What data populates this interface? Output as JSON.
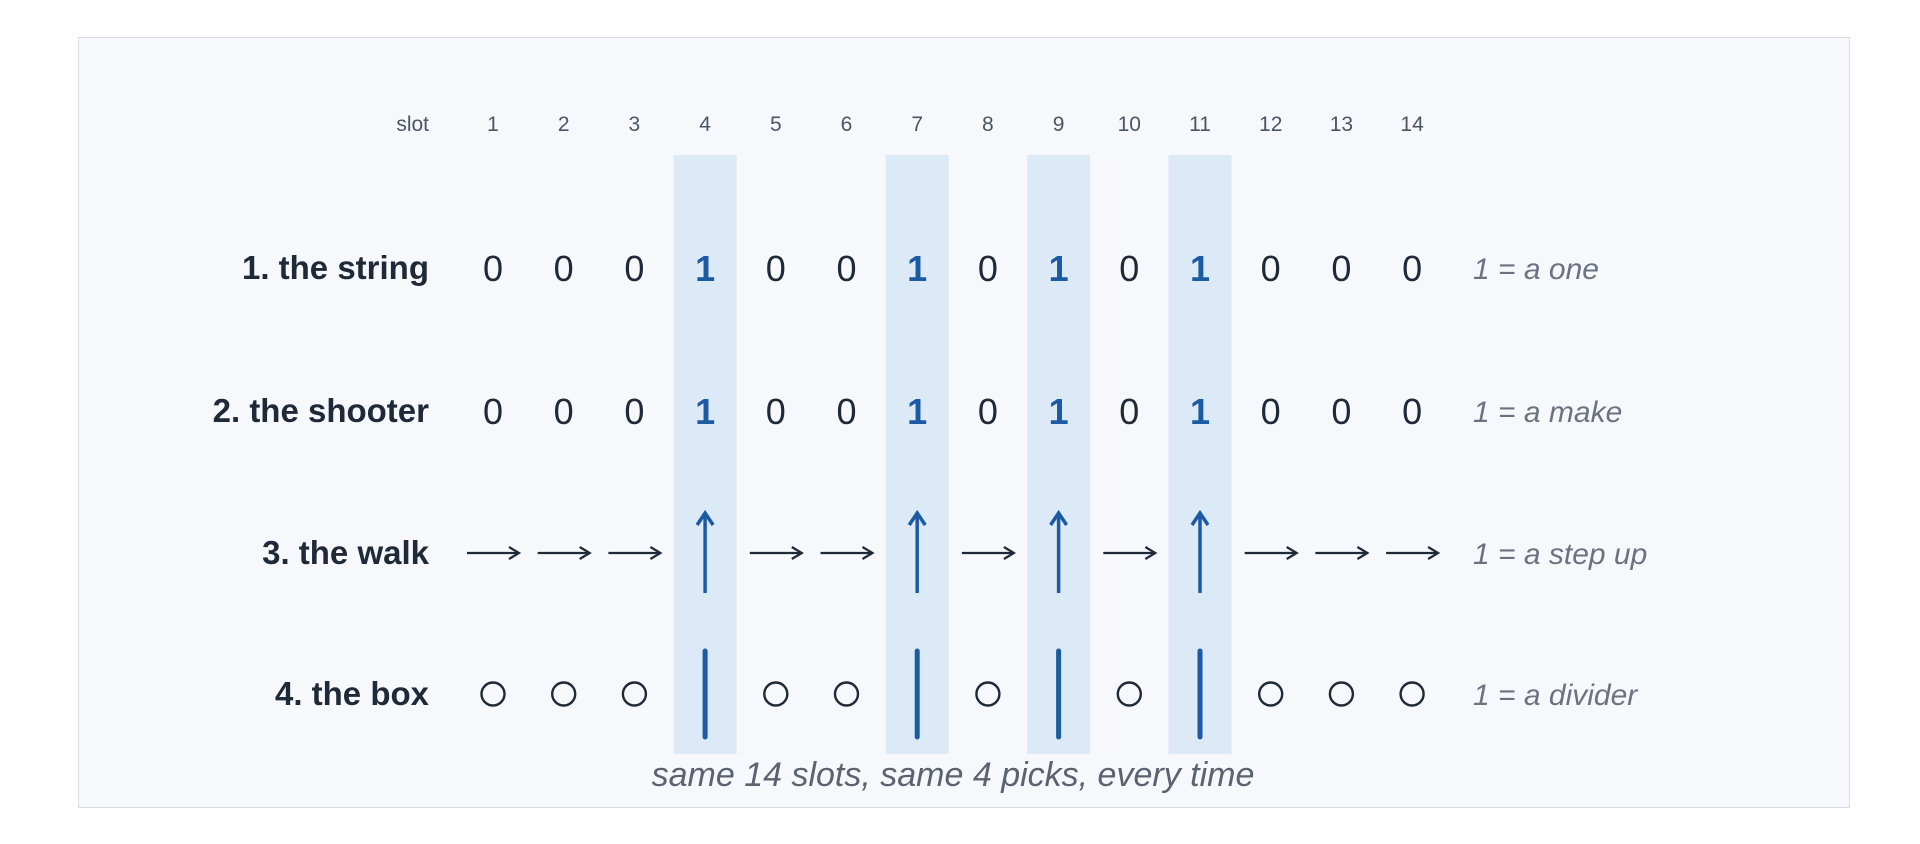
{
  "header": {
    "slot_label": "slot",
    "slots": [
      "1",
      "2",
      "3",
      "4",
      "5",
      "6",
      "7",
      "8",
      "9",
      "10",
      "11",
      "12",
      "13",
      "14"
    ]
  },
  "pattern": [
    0,
    0,
    0,
    1,
    0,
    0,
    1,
    0,
    1,
    0,
    1,
    0,
    0,
    0
  ],
  "rows": [
    {
      "label": "1. the string",
      "kind": "digits",
      "note": "1 = a one"
    },
    {
      "label": "2. the shooter",
      "kind": "digits",
      "note": "1 = a make"
    },
    {
      "label": "3. the walk",
      "kind": "arrows",
      "note": "1 = a step up"
    },
    {
      "label": "4. the box",
      "kind": "stars-bars",
      "note": "1 = a divider"
    }
  ],
  "digits": {
    "zero": "0",
    "one": "1"
  },
  "caption": "same 14 slots, same 4 picks, every time",
  "colors": {
    "highlight": "#dce9f7",
    "accent": "#1d5aa4",
    "ink": "#1f2937",
    "muted": "#6b7280",
    "panel": "#f6f8fb"
  },
  "icons": {
    "zero_walk": "right-arrow-icon",
    "one_walk": "up-arrow-icon",
    "zero_box": "circle-icon",
    "one_box": "divider-bar-icon"
  }
}
